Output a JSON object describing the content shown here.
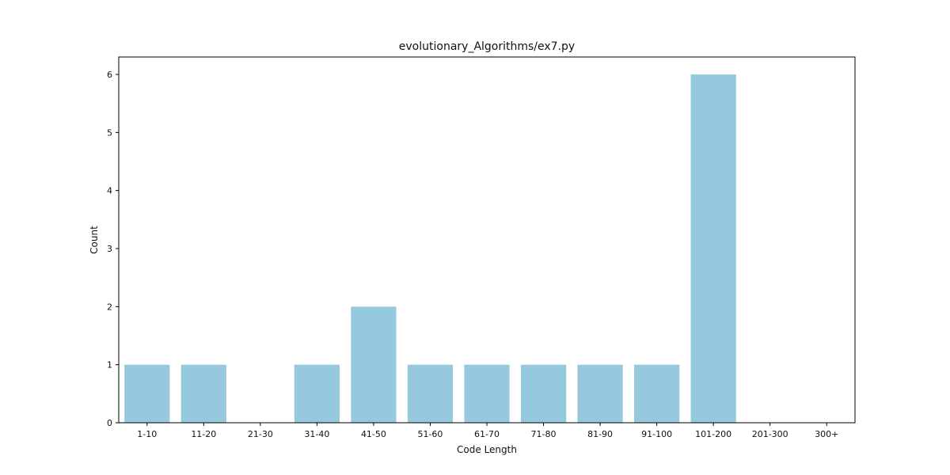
{
  "chart_data": {
    "type": "bar",
    "title": "evolutionary_Algorithms/ex7.py",
    "xlabel": "Code Length",
    "ylabel": "Count",
    "categories": [
      "1-10",
      "11-20",
      "21-30",
      "31-40",
      "41-50",
      "51-60",
      "61-70",
      "71-80",
      "81-90",
      "91-100",
      "101-200",
      "201-300",
      "300+"
    ],
    "values": [
      1,
      1,
      0,
      1,
      2,
      1,
      1,
      1,
      1,
      1,
      6,
      0,
      0
    ],
    "ylim": [
      0,
      6.3
    ],
    "yticks": [
      0,
      1,
      2,
      3,
      4,
      5,
      6
    ],
    "bar_color": "#96c9de",
    "grid": false
  }
}
